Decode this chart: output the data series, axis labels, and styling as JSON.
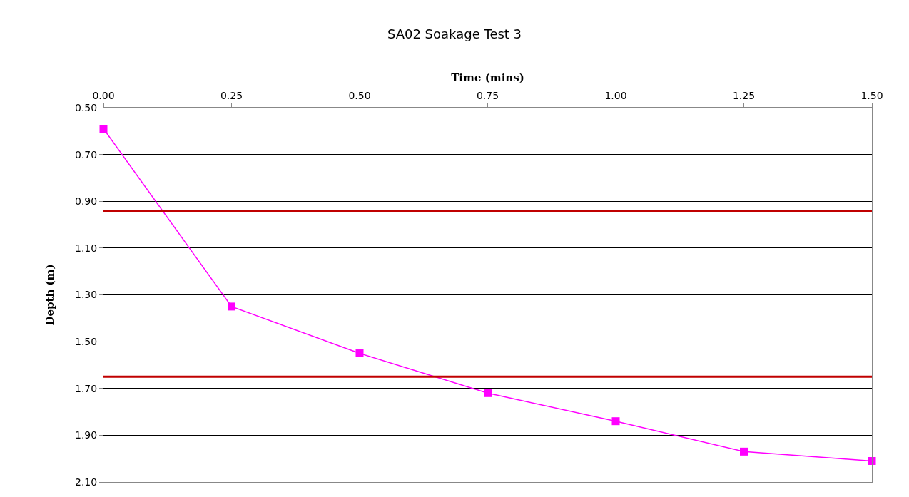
{
  "chart_data": {
    "type": "line",
    "title": "SA02 Soakage Test 3",
    "xlabel": "Time (mins)",
    "ylabel": "Depth (m)",
    "x": [
      0,
      0.25,
      0.5,
      0.75,
      1.0,
      1.25,
      1.5
    ],
    "series": [
      {
        "color": "#ff00ff",
        "values": [
          0.59,
          1.35,
          1.55,
          1.72,
          1.84,
          1.97,
          2.01
        ]
      }
    ],
    "xlim": [
      0,
      1.5
    ],
    "xticks": [
      {
        "value": 0,
        "label": "0.00"
      },
      {
        "value": 0.25,
        "label": "0.25"
      },
      {
        "value": 0.5,
        "label": "0.50"
      },
      {
        "value": 0.75,
        "label": "0.75"
      },
      {
        "value": 1,
        "label": "1.00"
      },
      {
        "value": 1.25,
        "label": "1.25"
      },
      {
        "value": 1.5,
        "label": "1.50"
      }
    ],
    "ylim": [
      2.1,
      0.5
    ],
    "yticks": [
      {
        "value": 0.5,
        "label": "0.50"
      },
      {
        "value": 0.7,
        "label": "0.70"
      },
      {
        "value": 0.9,
        "label": "0.90"
      },
      {
        "value": 1.1,
        "label": "1.10"
      },
      {
        "value": 1.3,
        "label": "1.30"
      },
      {
        "value": 1.5,
        "label": "1.50"
      },
      {
        "value": 1.7,
        "label": "1.70"
      },
      {
        "value": 1.9,
        "label": "1.90"
      },
      {
        "value": 2.1,
        "label": "2.10"
      }
    ],
    "ref_lines": [
      {
        "axis": "y",
        "value": 0.94,
        "color": "#c00000"
      },
      {
        "axis": "y",
        "value": 1.65,
        "color": "#c00000"
      }
    ],
    "grid": "y",
    "marker": "square",
    "line_style": "solid"
  }
}
